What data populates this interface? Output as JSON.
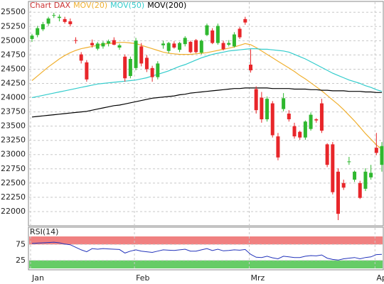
{
  "chart_data": [
    {
      "type": "candlestick",
      "title": "Chart DAX",
      "title_color": "#cc3333",
      "up_color": "#2fb82f",
      "down_color": "#e8262a",
      "grid": true,
      "ylim": [
        21750,
        25690
      ],
      "yticks": [
        22000,
        22250,
        22500,
        22750,
        23000,
        23250,
        23500,
        23750,
        24000,
        24250,
        24500,
        24750,
        25000,
        25250,
        25500
      ],
      "categories": [
        "Jan",
        null,
        null,
        null,
        null,
        null,
        null,
        null,
        null,
        null,
        null,
        null,
        null,
        null,
        null,
        null,
        null,
        null,
        null,
        "Feb",
        null,
        null,
        null,
        null,
        null,
        null,
        null,
        null,
        null,
        null,
        null,
        null,
        null,
        null,
        null,
        null,
        null,
        null,
        null,
        null,
        "Mrz",
        null,
        null,
        null,
        null,
        null,
        null,
        null,
        null,
        null,
        null,
        null,
        null,
        null,
        null,
        null,
        null,
        null,
        null,
        null,
        null,
        null,
        null,
        "Ap",
        null
      ],
      "open": [
        25030,
        25100,
        25200,
        25300,
        25440,
        25400,
        25380,
        25340,
        25010,
        24760,
        24620,
        24960,
        24860,
        24900,
        24950,
        25010,
        24880,
        24720,
        24380,
        24520,
        24900,
        24700,
        24520,
        24360,
        24920,
        24820,
        24950,
        24840,
        24940,
        24980,
        25010,
        24790,
        25100,
        25180,
        24960,
        24960,
        24930,
        24900,
        25210,
        25380,
        24580,
        24150,
        24000,
        23620,
        23900,
        23320,
        23800,
        23720,
        23500,
        23400,
        23300,
        23450,
        23620,
        23900,
        23180,
        23180,
        22700,
        22500,
        22880,
        22560,
        22500,
        22400,
        22600,
        23120,
        22820
      ],
      "high": [
        25120,
        25260,
        25330,
        25420,
        25490,
        25460,
        25420,
        25390,
        25060,
        24800,
        24660,
        25020,
        24980,
        24990,
        25020,
        25060,
        24950,
        24760,
        24720,
        25050,
        24960,
        24750,
        24560,
        24640,
        25000,
        24980,
        24990,
        24980,
        25080,
        25000,
        25030,
        25020,
        25300,
        25220,
        25300,
        25000,
        25010,
        25150,
        25240,
        25420,
        24850,
        24200,
        24100,
        24020,
        23940,
        23380,
        24080,
        23780,
        23560,
        23420,
        23600,
        23740,
        23640,
        23980,
        23200,
        23220,
        22760,
        22560,
        22960,
        22720,
        22540,
        22760,
        22820,
        23380,
        23220
      ],
      "low": [
        24980,
        25060,
        25170,
        25260,
        25400,
        25340,
        25300,
        25250,
        24950,
        24600,
        24280,
        24880,
        24830,
        24860,
        24900,
        24920,
        24840,
        24280,
        24340,
        24480,
        24550,
        24450,
        24280,
        24320,
        24860,
        24780,
        24860,
        24800,
        24900,
        24780,
        24780,
        24760,
        25080,
        24940,
        24930,
        24830,
        24900,
        24880,
        25030,
        25280,
        24440,
        23720,
        23560,
        23580,
        23300,
        22900,
        23760,
        23580,
        23280,
        23260,
        23260,
        23420,
        23560,
        23380,
        22780,
        22300,
        21850,
        22380,
        22820,
        22520,
        22220,
        22360,
        22560,
        22990,
        22700
      ],
      "close": [
        25090,
        25220,
        25290,
        25390,
        25450,
        25420,
        25330,
        25290,
        25000,
        24650,
        24320,
        24920,
        24950,
        24960,
        24990,
        24930,
        24920,
        24340,
        24680,
        25000,
        24600,
        24500,
        24360,
        24600,
        24950,
        24960,
        24880,
        24960,
        25050,
        24800,
        24800,
        25000,
        25270,
        24960,
        25260,
        24850,
        24960,
        25110,
        25060,
        25320,
        24480,
        23780,
        23620,
        23980,
        23340,
        22950,
        23990,
        23620,
        23320,
        23300,
        23580,
        23700,
        23600,
        23420,
        22820,
        22340,
        21960,
        22420,
        22880,
        22700,
        22240,
        22700,
        22680,
        23030,
        23150
      ],
      "series": [
        {
          "name": "MOV(20)",
          "color": "#f0b030",
          "values": [
            24300,
            24380,
            24460,
            24540,
            24610,
            24680,
            24740,
            24790,
            24830,
            24860,
            24880,
            24900,
            24920,
            24940,
            24950,
            24960,
            24970,
            24970,
            24960,
            24950,
            24920,
            24890,
            24860,
            24830,
            24800,
            24780,
            24770,
            24760,
            24760,
            24760,
            24770,
            24780,
            24790,
            24810,
            24830,
            24850,
            24870,
            24890,
            24920,
            24950,
            24930,
            24880,
            24820,
            24760,
            24700,
            24640,
            24580,
            24520,
            24460,
            24390,
            24330,
            24260,
            24190,
            24120,
            24040,
            23960,
            23880,
            23790,
            23690,
            23590,
            23480,
            23370,
            23270,
            23170,
            23090
          ]
        },
        {
          "name": "MOV(50)",
          "color": "#33cccc",
          "values": [
            24000,
            24020,
            24040,
            24060,
            24080,
            24100,
            24120,
            24140,
            24160,
            24180,
            24200,
            24220,
            24240,
            24250,
            24260,
            24270,
            24280,
            24290,
            24300,
            24310,
            24330,
            24350,
            24380,
            24410,
            24440,
            24470,
            24510,
            24550,
            24580,
            24620,
            24660,
            24700,
            24730,
            24760,
            24780,
            24800,
            24820,
            24830,
            24840,
            24850,
            24860,
            24860,
            24850,
            24850,
            24840,
            24830,
            24820,
            24800,
            24760,
            24720,
            24680,
            24630,
            24580,
            24530,
            24480,
            24430,
            24390,
            24350,
            24310,
            24280,
            24250,
            24210,
            24180,
            24140,
            24110
          ]
        },
        {
          "name": "MOV(200)",
          "color": "#000000",
          "values": [
            23660,
            23670,
            23680,
            23690,
            23700,
            23710,
            23720,
            23730,
            23740,
            23750,
            23760,
            23780,
            23800,
            23820,
            23840,
            23860,
            23870,
            23890,
            23910,
            23930,
            23950,
            23970,
            23990,
            24000,
            24010,
            24020,
            24030,
            24050,
            24060,
            24080,
            24090,
            24100,
            24110,
            24120,
            24130,
            24140,
            24150,
            24160,
            24160,
            24170,
            24170,
            24170,
            24170,
            24170,
            24160,
            24160,
            24160,
            24160,
            24150,
            24150,
            24150,
            24140,
            24140,
            24130,
            24130,
            24120,
            24120,
            24120,
            24110,
            24110,
            24110,
            24100,
            24100,
            24090,
            24090
          ]
        }
      ]
    },
    {
      "type": "line",
      "title": "RSI(14)",
      "color": "#2233bb",
      "ylim": [
        0,
        100
      ],
      "yticks": [
        25,
        75
      ],
      "band_colors": [
        "#66cc66",
        "#f08080"
      ],
      "values": [
        78,
        79,
        80,
        81,
        82,
        80,
        76,
        74,
        66,
        58,
        52,
        62,
        60,
        62,
        61,
        60,
        59,
        48,
        54,
        58,
        54,
        52,
        50,
        54,
        58,
        57,
        56,
        58,
        60,
        54,
        54,
        58,
        62,
        56,
        60,
        55,
        56,
        58,
        57,
        59,
        44,
        35,
        34,
        38,
        33,
        30,
        38,
        36,
        34,
        34,
        38,
        40,
        39,
        42,
        32,
        28,
        26,
        30,
        32,
        34,
        30,
        34,
        36,
        43,
        44
      ]
    }
  ]
}
